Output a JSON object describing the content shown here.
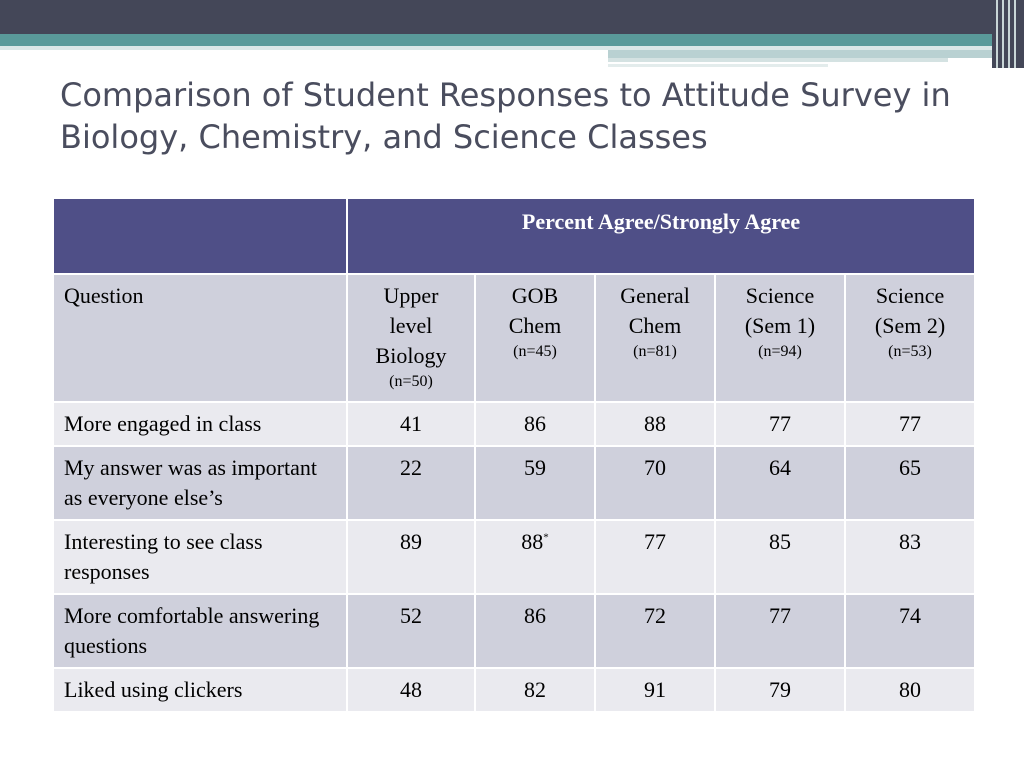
{
  "title": "Comparison of Student Responses to Attitude Survey in Biology, Chemistry, and Science Classes",
  "table": {
    "super_header": "Percent Agree/Strongly Agree",
    "question_header": "Question",
    "columns": [
      {
        "label_lines": [
          "Upper",
          "level",
          "Biology"
        ],
        "n": "(n=50)"
      },
      {
        "label_lines": [
          "GOB",
          "Chem"
        ],
        "n": "(n=45)"
      },
      {
        "label_lines": [
          "General",
          "Chem"
        ],
        "n": "(n=81)"
      },
      {
        "label_lines": [
          "Science",
          "(Sem 1)"
        ],
        "n": "(n=94)"
      },
      {
        "label_lines": [
          "Science",
          "(Sem 2)"
        ],
        "n": "(n=53)"
      }
    ],
    "rows": [
      {
        "question": "More engaged in class",
        "values": [
          "41",
          "86",
          "88",
          "77",
          "77"
        ]
      },
      {
        "question": "My  answer was as important as everyone else’s",
        "values": [
          "22",
          "59",
          "70",
          "64",
          "65"
        ]
      },
      {
        "question": "Interesting to see class responses",
        "values": [
          "89",
          "88",
          "77",
          "85",
          "83"
        ],
        "footnote_mark": "*"
      },
      {
        "question": "More comfortable answering questions",
        "values": [
          "52",
          "86",
          "72",
          "77",
          "74"
        ]
      },
      {
        "question": "Liked using clickers",
        "values": [
          "48",
          "82",
          "91",
          "79",
          "80"
        ]
      }
    ]
  },
  "colors": {
    "header_bg": "#4f4f87",
    "row_dark": "#cfd0dc",
    "row_light": "#eaeaef",
    "title_text": "#4a4d5e",
    "band_dark": "#444758",
    "band_teal": "#5a9a9a"
  }
}
